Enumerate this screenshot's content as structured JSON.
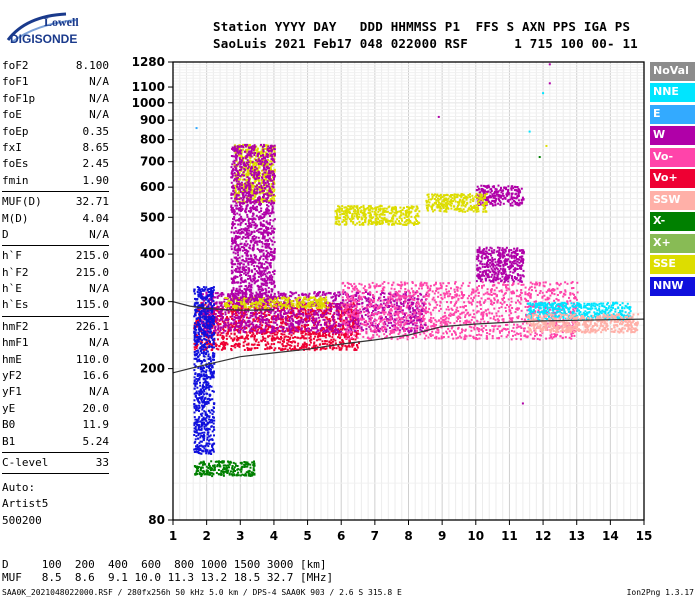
{
  "logo": {
    "top_text": "Lowell",
    "bottom_text": "DIGISONDE"
  },
  "header": {
    "line1": "Station YYYY DAY   DDD HHMMSS P1  FFS S AXN PPS IGA PS",
    "line2": "SaoLuis 2021 Feb17 048 022000 RSF      1 715 100 00- 11"
  },
  "params": [
    [
      [
        "foF2",
        "8.100"
      ],
      [
        "foF1",
        "N/A"
      ],
      [
        "foF1p",
        "N/A"
      ],
      [
        "foE",
        "N/A"
      ],
      [
        "foEp",
        "0.35"
      ],
      [
        "fxI",
        "8.65"
      ],
      [
        "foEs",
        "2.45"
      ],
      [
        "fmin",
        "1.90"
      ]
    ],
    [
      [
        "MUF(D)",
        "32.71"
      ],
      [
        "M(D)",
        "4.04"
      ],
      [
        "D",
        "N/A"
      ]
    ],
    [
      [
        "h`F",
        "215.0"
      ],
      [
        "h`F2",
        "215.0"
      ],
      [
        "h`E",
        "N/A"
      ],
      [
        "h`Es",
        "115.0"
      ]
    ],
    [
      [
        "hmF2",
        "226.1"
      ],
      [
        "hmF1",
        "N/A"
      ],
      [
        "hmE",
        "110.0"
      ],
      [
        "yF2",
        "16.6"
      ],
      [
        "yF1",
        "N/A"
      ],
      [
        "yE",
        "20.0"
      ],
      [
        "B0",
        "11.9"
      ],
      [
        "B1",
        "5.24"
      ]
    ],
    [
      [
        "C-level",
        "33"
      ]
    ]
  ],
  "auto": {
    "line1": "Auto:",
    "line2": "Artist5",
    "line3": "500200"
  },
  "legend": [
    {
      "label": "NoVal",
      "color": "#8c8c8c"
    },
    {
      "label": "NNE",
      "color": "#00e5ff"
    },
    {
      "label": "E",
      "color": "#33aaff"
    },
    {
      "label": "W",
      "color": "#b000a8"
    },
    {
      "label": "Vo-",
      "color": "#ff44aa"
    },
    {
      "label": "Vo+",
      "color": "#ee0033"
    },
    {
      "label": "SSW",
      "color": "#ffb0a8"
    },
    {
      "label": "X-",
      "color": "#008000"
    },
    {
      "label": "X+",
      "color": "#88bb55"
    },
    {
      "label": "SSE",
      "color": "#dddd00"
    },
    {
      "label": "NNW",
      "color": "#1010dd"
    }
  ],
  "dmuf": {
    "d_line": "D     100  200  400  600  800 1000 1500 3000 [km]",
    "muf_line": "MUF   8.5  8.6  9.1 10.0 11.3 13.2 18.5 32.7 [MHz]"
  },
  "footer": "SAA0K_2021048022000.RSF / 280fx256h 50 kHz 5.0 km / DPS-4 SAA0K 903 / 2.6 S 315.8 E",
  "version": "Ion2Png 1.3.17",
  "chart_data": {
    "type": "scatter",
    "title": "",
    "xlabel": "",
    "ylabel": "",
    "xlim": [
      1,
      15
    ],
    "ylim": [
      80,
      1280
    ],
    "y_scale": "log",
    "x_ticks": [
      1,
      2,
      3,
      4,
      5,
      6,
      7,
      8,
      9,
      10,
      11,
      12,
      13,
      14,
      15
    ],
    "y_ticks": [
      80,
      200,
      300,
      400,
      500,
      600,
      700,
      800,
      900,
      1000,
      1100,
      1280
    ],
    "grid": true,
    "trace_lines": [
      {
        "name": "",
        "x": [
          1,
          1.5,
          2,
          3,
          4,
          5,
          6,
          7,
          8,
          9,
          10,
          11,
          12,
          13,
          14,
          15
        ],
        "y": [
          195,
          200,
          205,
          215,
          220,
          225,
          232,
          238,
          245,
          258,
          262,
          265,
          267,
          268,
          269,
          270
        ]
      },
      {
        "name": "",
        "x": [
          1,
          1.5,
          2,
          2.5,
          3,
          3.5,
          4
        ],
        "y": [
          300,
          292,
          288,
          286,
          285,
          285,
          286
        ]
      }
    ],
    "echo_regions": [
      {
        "color": "#ee0033",
        "x": [
          1.6,
          6.5
        ],
        "y": [
          225,
          300
        ]
      },
      {
        "color": "#b000a8",
        "x": [
          1.8,
          8.5
        ],
        "y": [
          250,
          320
        ]
      },
      {
        "color": "#dddd00",
        "x": [
          2.5,
          5.6
        ],
        "y": [
          290,
          310
        ]
      },
      {
        "color": "#ff44aa",
        "x": [
          6.0,
          13.0
        ],
        "y": [
          240,
          340
        ]
      },
      {
        "color": "#b000a8",
        "x": [
          10.0,
          11.4
        ],
        "y": [
          340,
          420
        ]
      },
      {
        "color": "#b000a8",
        "x": [
          10.0,
          11.4
        ],
        "y": [
          540,
          610
        ]
      },
      {
        "color": "#dddd00",
        "x": [
          8.5,
          10.3
        ],
        "y": [
          520,
          580
        ]
      },
      {
        "color": "#dddd00",
        "x": [
          5.8,
          8.3
        ],
        "y": [
          480,
          540
        ]
      },
      {
        "color": "#dddd00",
        "x": [
          2.8,
          4.0
        ],
        "y": [
          550,
          780
        ]
      },
      {
        "color": "#b000a8",
        "x": [
          2.7,
          4.0
        ],
        "y": [
          300,
          780
        ]
      },
      {
        "color": "#008000",
        "x": [
          1.6,
          3.4
        ],
        "y": [
          105,
          115
        ]
      },
      {
        "color": "#00e5ff",
        "x": [
          11.5,
          14.6
        ],
        "y": [
          270,
          300
        ]
      },
      {
        "color": "#ffb0a8",
        "x": [
          11.5,
          14.8
        ],
        "y": [
          250,
          280
        ]
      },
      {
        "color": "#1010dd",
        "x": [
          1.6,
          2.2
        ],
        "y": [
          120,
          330
        ]
      }
    ],
    "isolated_points": [
      {
        "x": 12.2,
        "y": 1262,
        "color": "#b000a8"
      },
      {
        "x": 12.2,
        "y": 1125,
        "color": "#b000a8"
      },
      {
        "x": 12.0,
        "y": 1060,
        "color": "#00e5ff"
      },
      {
        "x": 8.9,
        "y": 918,
        "color": "#b000a8"
      },
      {
        "x": 1.7,
        "y": 858,
        "color": "#33aaff"
      },
      {
        "x": 12.1,
        "y": 770,
        "color": "#dddd00"
      },
      {
        "x": 11.9,
        "y": 720,
        "color": "#008000"
      },
      {
        "x": 11.6,
        "y": 840,
        "color": "#00e5ff"
      },
      {
        "x": 11.4,
        "y": 162,
        "color": "#b000a8"
      }
    ]
  }
}
